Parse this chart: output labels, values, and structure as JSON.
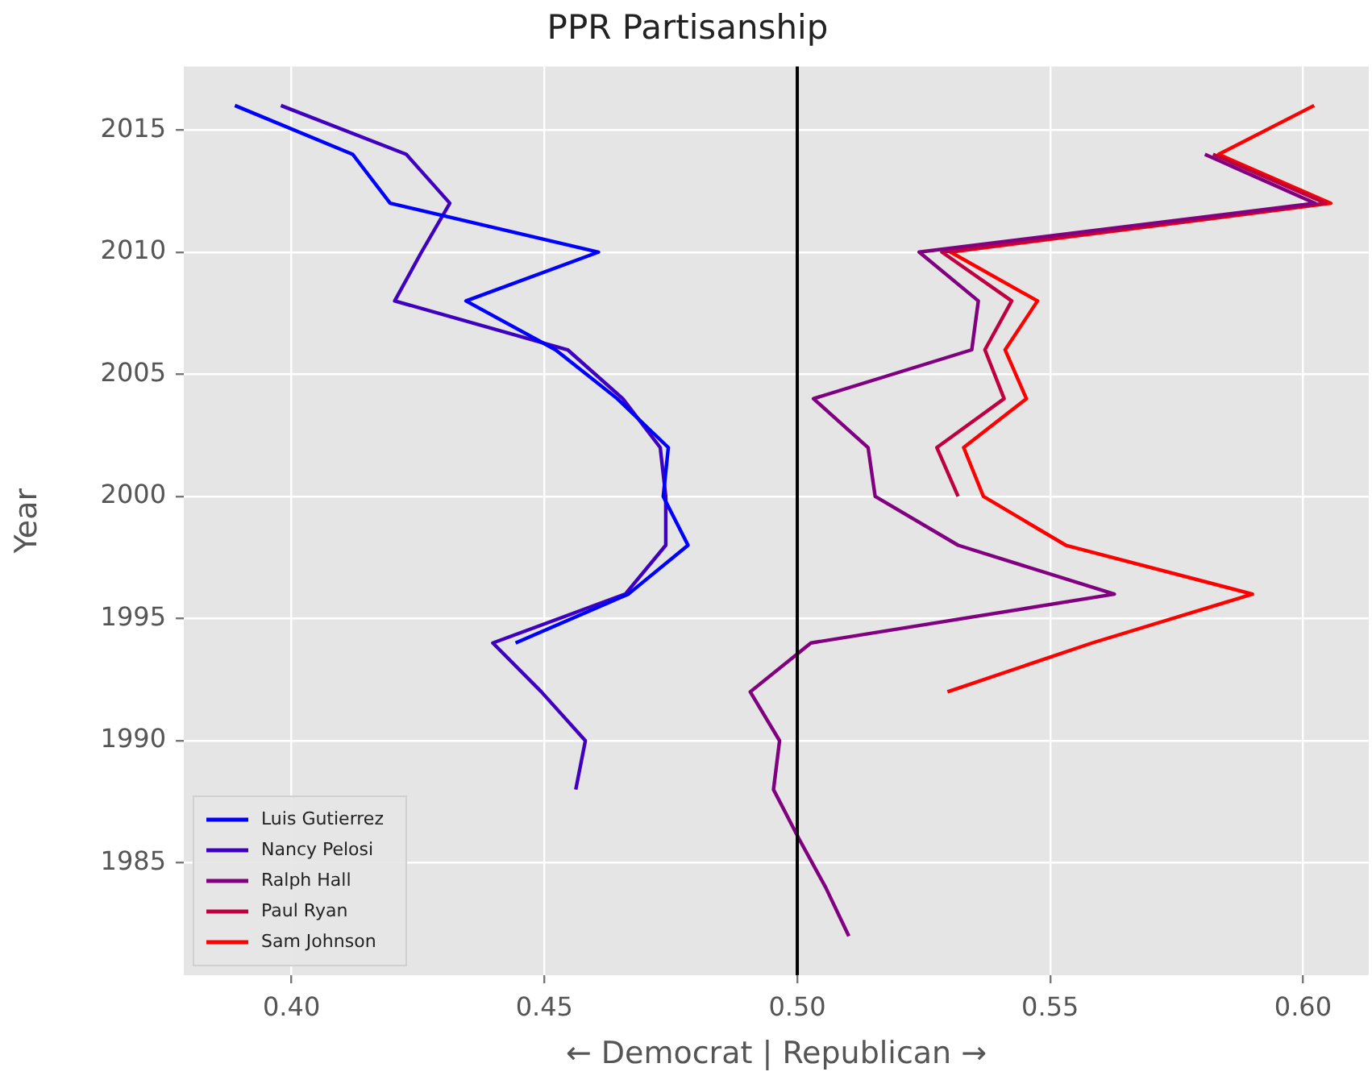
{
  "chart_data": {
    "type": "line",
    "title": "PPR Partisanship",
    "xlabel": "← Democrat | Republican →",
    "ylabel": "Year",
    "orientation": "horizontal",
    "xlim": [
      0.3787,
      0.613
    ],
    "xticks": [
      {
        "value": 0.4,
        "label": "0.40"
      },
      {
        "value": 0.45,
        "label": "0.45"
      },
      {
        "value": 0.5,
        "label": "0.50"
      },
      {
        "value": 0.55,
        "label": "0.55"
      },
      {
        "value": 0.6,
        "label": "0.60"
      }
    ],
    "ylim": [
      1980.4,
      2017.6
    ],
    "yticks": [
      1985,
      1990,
      1995,
      2000,
      2005,
      2010,
      2015
    ],
    "grid": true,
    "legend": "bottom left",
    "marker": "none",
    "line_style": "solid",
    "ref_lines": [
      {
        "axis": "x",
        "value": 0.5,
        "color": "#000000"
      }
    ],
    "series": [
      {
        "name": "Luis Gutierrez",
        "color": "#0000ff",
        "x": [
          1994,
          1996,
          1998,
          2000,
          2002,
          2004,
          2006,
          2008,
          2010,
          2012,
          2014,
          2016
        ],
        "values": [
          0.4443,
          0.4666,
          0.4784,
          0.4735,
          0.4745,
          0.4644,
          0.4522,
          0.4345,
          0.4607,
          0.4195,
          0.4121,
          0.3888
        ]
      },
      {
        "name": "Nancy Pelosi",
        "color": "#4000bf",
        "x": [
          1988,
          1990,
          1992,
          1994,
          1996,
          1998,
          2000,
          2002,
          2004,
          2006,
          2008,
          2010,
          2012,
          2014,
          2016
        ],
        "values": [
          0.4562,
          0.4581,
          0.4494,
          0.4398,
          0.466,
          0.474,
          0.474,
          0.4729,
          0.4655,
          0.4546,
          0.4204,
          0.4257,
          0.4313,
          0.4227,
          0.3979
        ]
      },
      {
        "name": "Ralph Hall",
        "color": "#800080",
        "x": [
          1982,
          1984,
          1986,
          1988,
          1990,
          1992,
          1994,
          1996,
          1998,
          2000,
          2002,
          2004,
          2006,
          2008,
          2010,
          2012,
          2014
        ],
        "values": [
          0.5102,
          0.5056,
          0.5003,
          0.4953,
          0.4965,
          0.4907,
          0.5027,
          0.5627,
          0.5318,
          0.5154,
          0.514,
          0.5032,
          0.5345,
          0.5358,
          0.5241,
          0.6024,
          0.5806
        ]
      },
      {
        "name": "Paul Ryan",
        "color": "#bf0040",
        "x": [
          2000,
          2002,
          2004,
          2006,
          2008,
          2010,
          2012,
          2014
        ],
        "values": [
          0.5318,
          0.5276,
          0.5409,
          0.5371,
          0.5424,
          0.5286,
          0.6045,
          0.5822
        ]
      },
      {
        "name": "Sam Johnson",
        "color": "#ff0000",
        "x": [
          1992,
          1994,
          1996,
          1998,
          2000,
          2002,
          2004,
          2006,
          2008,
          2010,
          2012,
          2014,
          2016
        ],
        "values": [
          0.5297,
          0.5583,
          0.59,
          0.5531,
          0.5368,
          0.5329,
          0.5453,
          0.5411,
          0.5475,
          0.5303,
          0.6055,
          0.5833,
          0.6022
        ]
      }
    ]
  }
}
